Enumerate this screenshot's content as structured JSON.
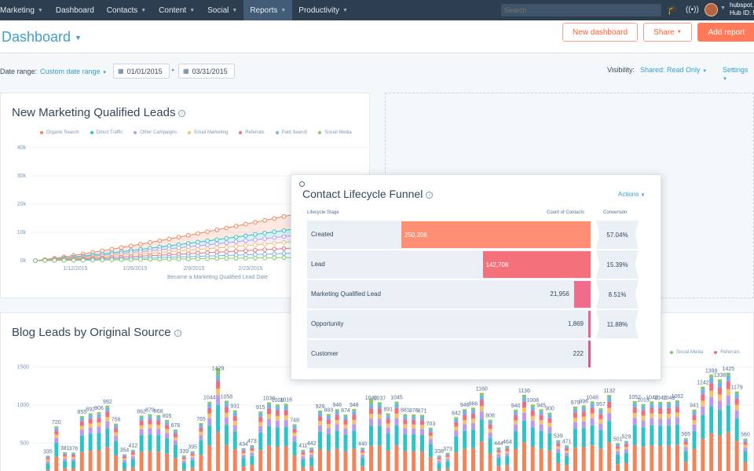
{
  "nav": {
    "items": [
      {
        "label": "Marketing",
        "caret": true
      },
      {
        "label": "Dashboard",
        "caret": false
      },
      {
        "label": "Contacts",
        "caret": true
      },
      {
        "label": "Content",
        "caret": true
      },
      {
        "label": "Social",
        "caret": true
      },
      {
        "label": "Reports",
        "caret": true,
        "active": true
      },
      {
        "label": "Productivity",
        "caret": true
      }
    ],
    "search_placeholder": "Search",
    "account_line1": "hubspot.",
    "account_line2": "Hub ID: 5",
    "icons": [
      "graduation-cap-icon",
      "broadcast-icon"
    ]
  },
  "header": {
    "title": "Dashboard",
    "new_dashboard": "New dashboard",
    "share": "Share",
    "add_report": "Add report"
  },
  "filters": {
    "date_range_label": "Date range:",
    "date_range_value": "Custom date range",
    "start_date": "01/01/2015",
    "end_date": "03/31/2015",
    "visibility_label": "Visibility:",
    "visibility_value": "Shared: Read Only",
    "settings": "Settings"
  },
  "colors": {
    "organic": "#f2845c",
    "direct": "#2ec4c6",
    "other": "#b89bf0",
    "email": "#f5c26b",
    "referrals": "#f26d7d",
    "paid": "#6fb3f2",
    "social": "#86c76b"
  },
  "mql_card": {
    "title": "New Marketing Qualified Leads",
    "legend": [
      "Organic Search",
      "Direct Traffic",
      "Other Campaigns",
      "Email Marketing",
      "Referrals",
      "Paid Search",
      "Social Media"
    ]
  },
  "blog_card": {
    "title": "Blog Leads by Original Source",
    "legend": [
      "Social Media",
      "Referrals"
    ]
  },
  "chart_data": [
    {
      "type": "line",
      "xlabel": "Became a Marketing Qualified Lead Date",
      "ylabel": "",
      "x_ticks": [
        "1/12/2015",
        "1/26/2015",
        "2/9/2015",
        "2/23/2015"
      ],
      "y_ticks": [
        "0k",
        "10k",
        "20k",
        "30k",
        "40k"
      ],
      "ylim": [
        0,
        40000
      ],
      "series": [
        {
          "name": "Organic Search",
          "end": 22000
        },
        {
          "name": "Direct Traffic",
          "end": 15000
        },
        {
          "name": "Other Campaigns",
          "end": 12000
        },
        {
          "name": "Email Marketing",
          "end": 9000
        },
        {
          "name": "Referrals",
          "end": 6000
        },
        {
          "name": "Paid Search",
          "end": 3500
        },
        {
          "name": "Social Media",
          "end": 1500
        }
      ]
    },
    {
      "type": "bar",
      "ylim": [
        0,
        1500
      ],
      "y_ticks": [
        "500",
        "1000",
        "1500"
      ],
      "totals": [
        335,
        720,
        381,
        376,
        855,
        892,
        906,
        992,
        756,
        354,
        412,
        862,
        879,
        868,
        805,
        678,
        339,
        395,
        765,
        1044,
        1429,
        1058,
        931,
        434,
        473,
        915,
        1036,
        1008,
        1016,
        748,
        411,
        442,
        929,
        883,
        946,
        874,
        948,
        440,
        1040,
        1037,
        891,
        1045,
        881,
        876,
        871,
        703,
        338,
        373,
        842,
        946,
        966,
        1160,
        808,
        444,
        464,
        940,
        1136,
        1008,
        945,
        900,
        539,
        471,
        979,
        996,
        1048,
        957,
        1132,
        501,
        529,
        1052,
        1013,
        1048,
        1042,
        1043,
        1062,
        565,
        941,
        1242,
        1399,
        1338,
        1425,
        1179,
        560
      ]
    }
  ],
  "funnel": {
    "title": "Contact Lifecycle Funnel",
    "actions": "Actions",
    "col_stage": "Lifecycle Stage",
    "col_count": "Count of Contacts",
    "col_conversion": "Conversion",
    "rows": [
      {
        "stage": "Created",
        "count": "250,206",
        "value": 250206,
        "color": "#ff8f73"
      },
      {
        "stage": "Lead",
        "count": "142,708",
        "value": 142708,
        "color": "#f4717b"
      },
      {
        "stage": "Marketing Qualified Lead",
        "count": "21,956",
        "value": 21956,
        "color": "#f06c8c"
      },
      {
        "stage": "Opportunity",
        "count": "1,869",
        "value": 1869,
        "color": "#e9608d"
      },
      {
        "stage": "Customer",
        "count": "222",
        "value": 222,
        "color": "#d85a93"
      }
    ],
    "conversions": [
      "57.04%",
      "15.39%",
      "8.51%",
      "11.88%"
    ]
  }
}
